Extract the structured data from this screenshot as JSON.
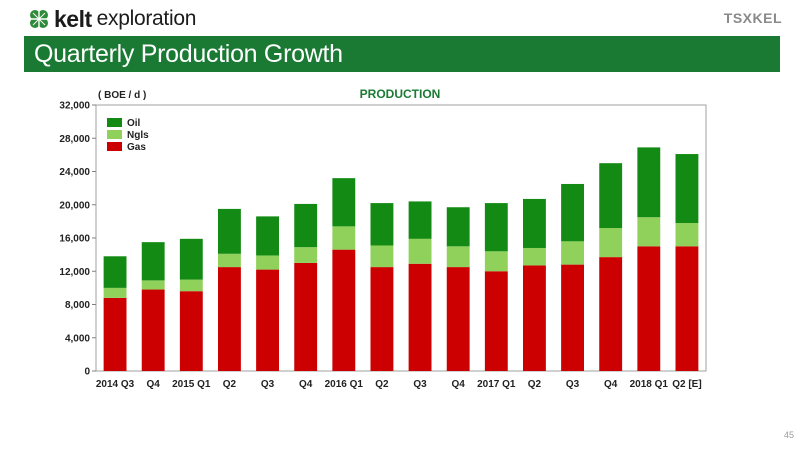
{
  "header": {
    "logo_kelt": "kelt",
    "logo_exploration": "exploration",
    "tsx_logo": "TSXKEL",
    "title": "Quarterly Production Growth"
  },
  "page_number": "45",
  "colors": {
    "title_bar": "#1a7a33",
    "oil": "#138a13",
    "ngls": "#8fd15a",
    "gas": "#cc0000",
    "chart_title": "#1a7a33"
  },
  "chart_data": {
    "type": "bar",
    "stacked": true,
    "title": "PRODUCTION",
    "unit_label": "( BOE / d )",
    "ylim": [
      0,
      32000
    ],
    "yticks": [
      "0",
      "4,000",
      "8,000",
      "12,000",
      "16,000",
      "20,000",
      "24,000",
      "28,000",
      "32,000"
    ],
    "ytick_values": [
      0,
      4000,
      8000,
      12000,
      16000,
      20000,
      24000,
      28000,
      32000
    ],
    "grid": false,
    "legend_position": "top-left",
    "categories": [
      "2014 Q3",
      "Q4",
      "2015 Q1",
      "Q2",
      "Q3",
      "Q4",
      "2016 Q1",
      "Q2",
      "Q3",
      "Q4",
      "2017 Q1",
      "Q2",
      "Q3",
      "Q4",
      "2018 Q1",
      "Q2 [E]"
    ],
    "series": [
      {
        "name": "Gas",
        "color": "#cc0000",
        "values": [
          8800,
          9800,
          9600,
          12500,
          12200,
          13000,
          14600,
          12500,
          12900,
          12500,
          12000,
          12700,
          12800,
          13700,
          15000,
          15000
        ]
      },
      {
        "name": "Ngls",
        "color": "#8fd15a",
        "values": [
          1200,
          1100,
          1400,
          1600,
          1700,
          1900,
          2800,
          2600,
          3000,
          2500,
          2400,
          2100,
          2800,
          3500,
          3500,
          2800
        ]
      },
      {
        "name": "Oil",
        "color": "#138a13",
        "values": [
          3800,
          4600,
          4900,
          5400,
          4700,
          5200,
          5800,
          5100,
          4500,
          4700,
          5800,
          5900,
          6900,
          7800,
          8400,
          8300
        ]
      }
    ],
    "legend_order": [
      "Oil",
      "Ngls",
      "Gas"
    ]
  }
}
